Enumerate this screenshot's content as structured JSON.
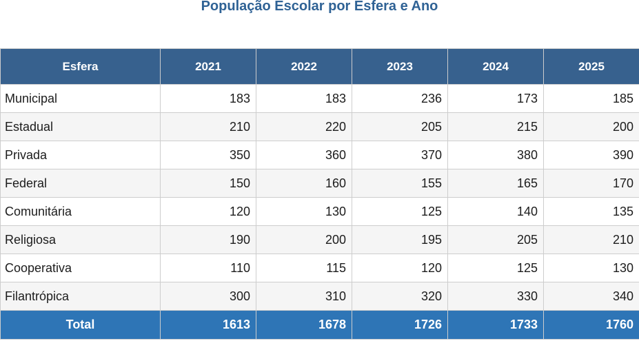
{
  "title": "População Escolar por Esfera e Ano",
  "colors": {
    "title_text": "#2f6295",
    "header_bg": "#37618e",
    "header_text": "#ffffff",
    "total_bg": "#2e75b6",
    "total_text": "#ffffff",
    "row_alt_bg": "#f5f5f5",
    "border": "#cdcdcd"
  },
  "chart_data": {
    "type": "table",
    "title": "População Escolar por Esfera e Ano",
    "columns": [
      "Esfera",
      "2021",
      "2022",
      "2023",
      "2024",
      "2025"
    ],
    "rows": [
      {
        "label": "Municipal",
        "values": [
          183,
          183,
          236,
          173,
          185
        ]
      },
      {
        "label": "Estadual",
        "values": [
          210,
          220,
          205,
          215,
          200
        ]
      },
      {
        "label": "Privada",
        "values": [
          350,
          360,
          370,
          380,
          390
        ]
      },
      {
        "label": "Federal",
        "values": [
          150,
          160,
          155,
          165,
          170
        ]
      },
      {
        "label": "Comunitária",
        "values": [
          120,
          130,
          125,
          140,
          135
        ]
      },
      {
        "label": "Religiosa",
        "values": [
          190,
          200,
          195,
          205,
          210
        ]
      },
      {
        "label": "Cooperativa",
        "values": [
          110,
          115,
          120,
          125,
          130
        ]
      },
      {
        "label": "Filantrópica",
        "values": [
          300,
          310,
          320,
          330,
          340
        ]
      }
    ],
    "total": {
      "label": "Total",
      "values": [
        1613,
        1678,
        1726,
        1733,
        1760
      ]
    }
  }
}
